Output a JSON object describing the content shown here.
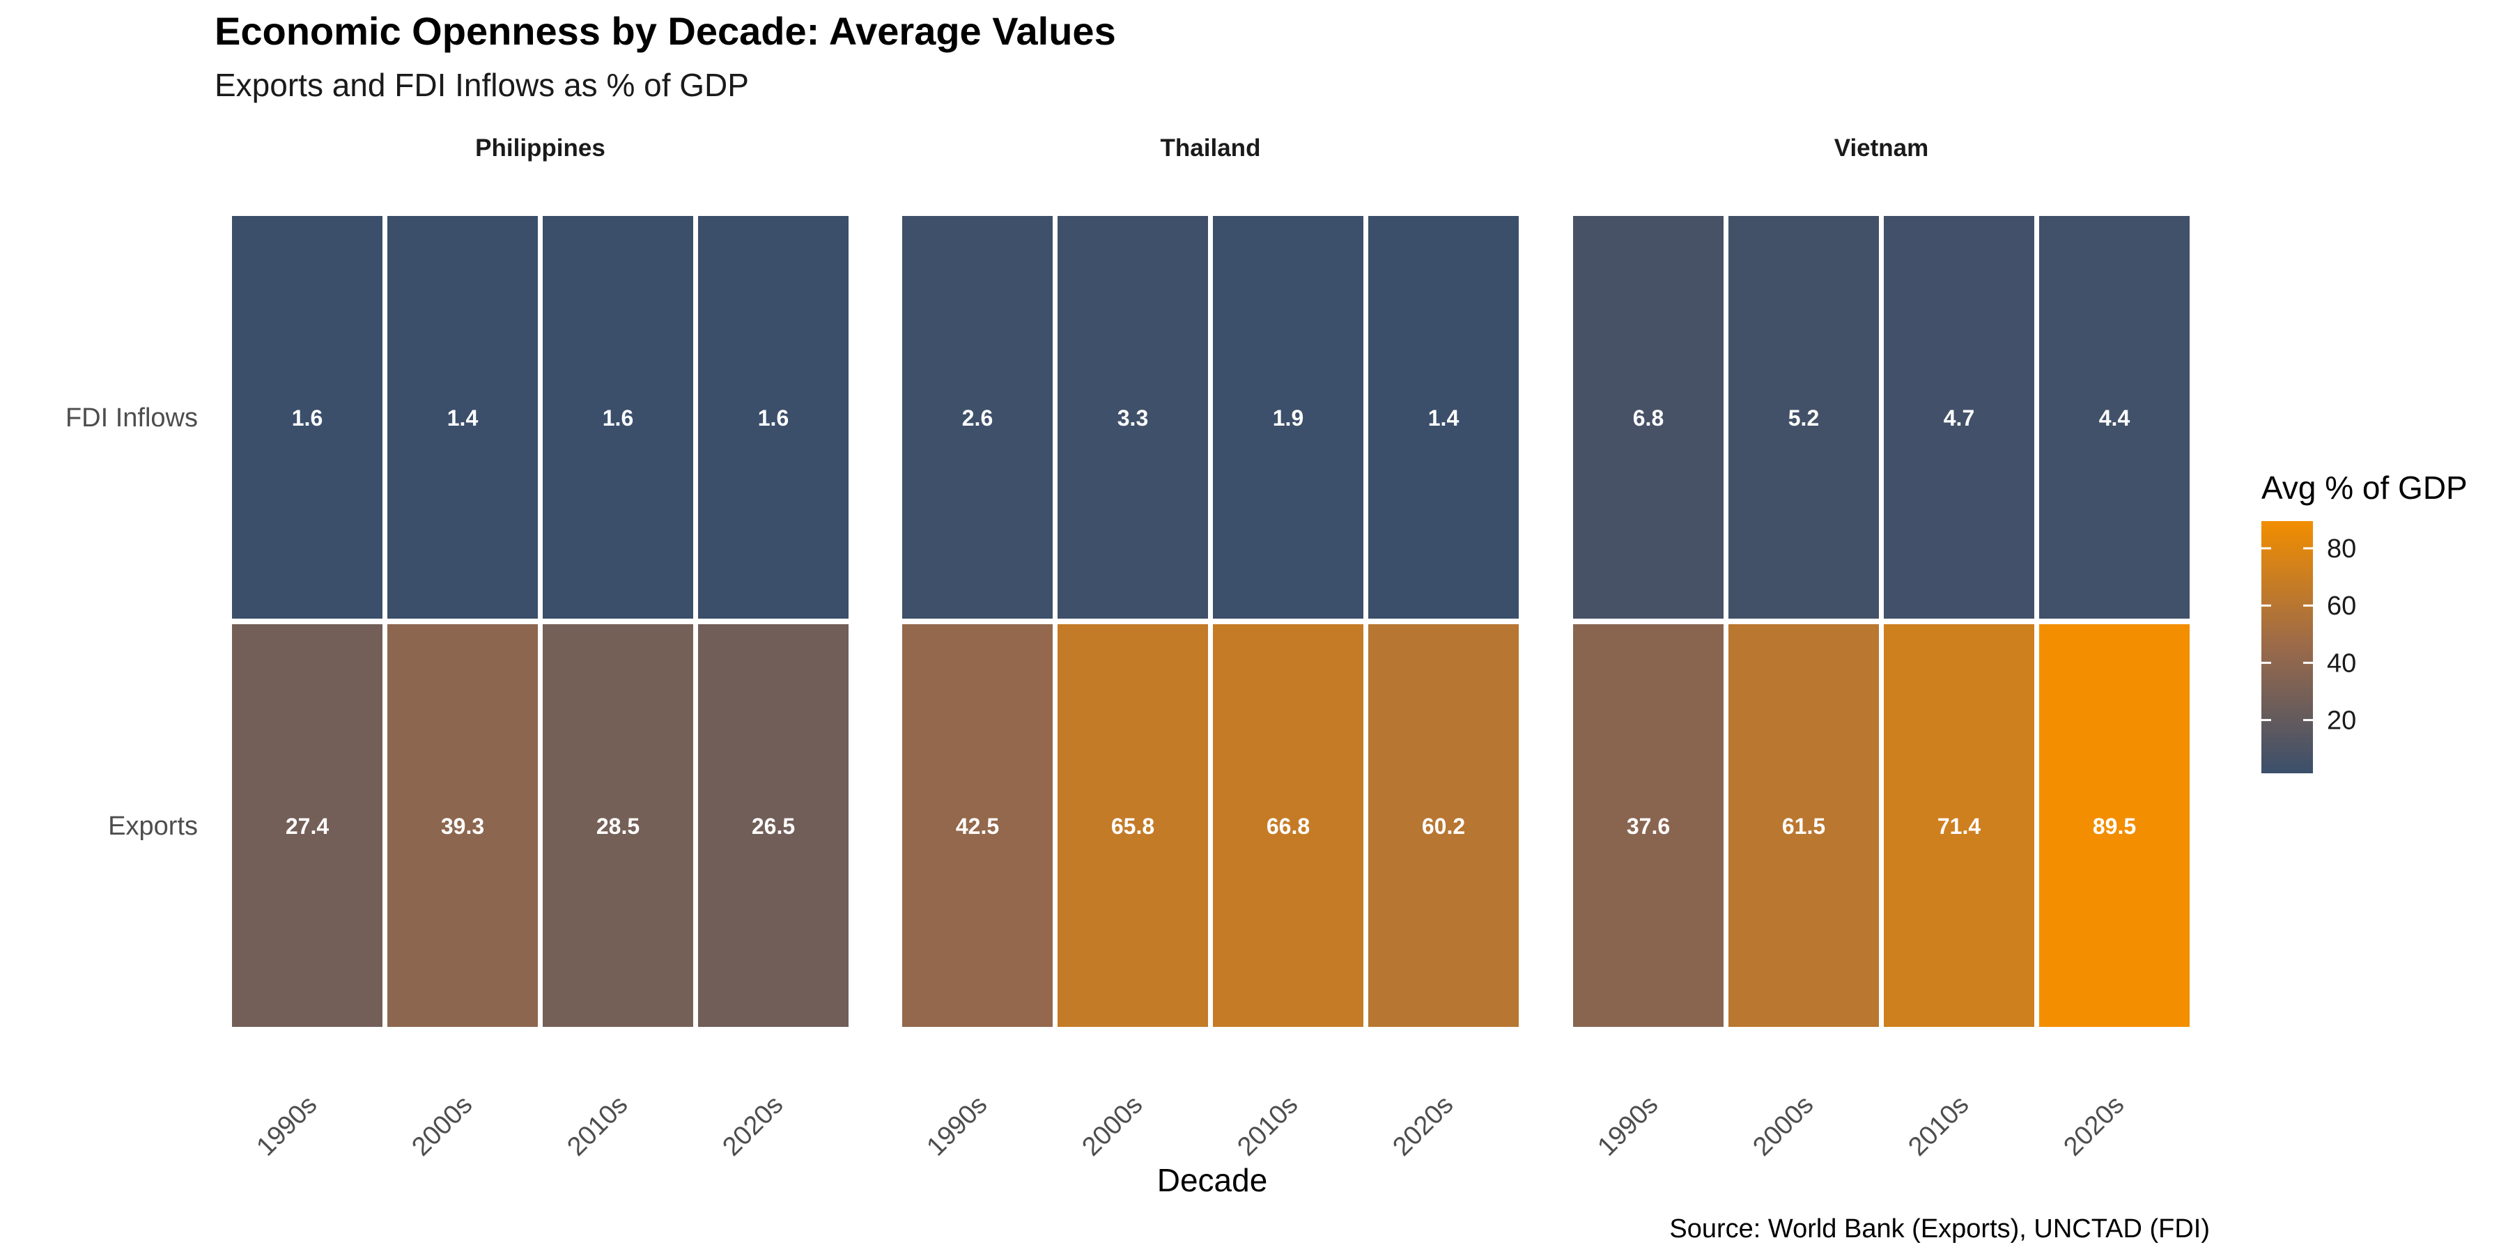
{
  "chart_data": {
    "type": "heatmap",
    "title": "Economic Openness by Decade: Average Values",
    "subtitle": "Exports and FDI Inflows as % of GDP",
    "xlabel": "Decade",
    "ylabel": "",
    "caption": "Source: World Bank (Exports), UNCTAD (FDI)",
    "categories": [
      "1990s",
      "2000s",
      "2010s",
      "2020s"
    ],
    "rows": [
      "FDI Inflows",
      "Exports"
    ],
    "facets": [
      {
        "name": "Philippines",
        "values": {
          "FDI Inflows": [
            1.6,
            1.4,
            1.6,
            1.6
          ],
          "Exports": [
            27.4,
            39.3,
            28.5,
            26.5
          ]
        }
      },
      {
        "name": "Thailand",
        "values": {
          "FDI Inflows": [
            2.6,
            3.3,
            1.9,
            1.4
          ],
          "Exports": [
            42.5,
            65.8,
            66.8,
            60.2
          ]
        }
      },
      {
        "name": "Vietnam",
        "values": {
          "FDI Inflows": [
            6.8,
            5.2,
            4.7,
            4.4
          ],
          "Exports": [
            37.6,
            61.5,
            71.4,
            89.5
          ]
        }
      }
    ],
    "legend": {
      "title": "Avg % of GDP",
      "ticks": [
        20,
        40,
        60,
        80
      ],
      "range": [
        1.4,
        89.5
      ],
      "low_color": "#3b4f6b",
      "high_color": "#f28e00",
      "position": "right"
    },
    "grid": false
  }
}
